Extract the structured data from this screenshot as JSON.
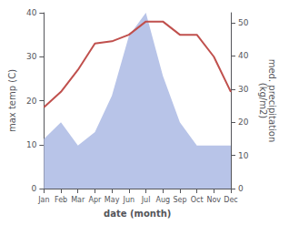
{
  "chart_data": {
    "type": "line",
    "xlabel": "date (month)",
    "ylabel": "max temp (C)",
    "y2label": "med. precipitation\n(kg/m2)",
    "categories": [
      "Jan",
      "Feb",
      "Mar",
      "Apr",
      "May",
      "Jun",
      "Jul",
      "Aug",
      "Sep",
      "Oct",
      "Nov",
      "Dec"
    ],
    "series": [
      {
        "type": "area",
        "axis": "y2",
        "color": "#b8c4e8",
        "values": [
          15,
          20,
          13,
          17,
          28,
          46,
          53,
          34,
          20,
          13,
          13,
          13
        ]
      },
      {
        "type": "line",
        "color": "#c0504d",
        "values": [
          18.5,
          22,
          27,
          33,
          33.5,
          35,
          38,
          38,
          35,
          35,
          30,
          22
        ]
      }
    ],
    "ylim": [
      0,
      40
    ],
    "yticks": [
      0,
      10,
      20,
      30,
      40
    ],
    "y2lim": [
      0,
      53
    ],
    "y2ticks": [
      0,
      10,
      20,
      30,
      40,
      50
    ],
    "grid": false
  }
}
